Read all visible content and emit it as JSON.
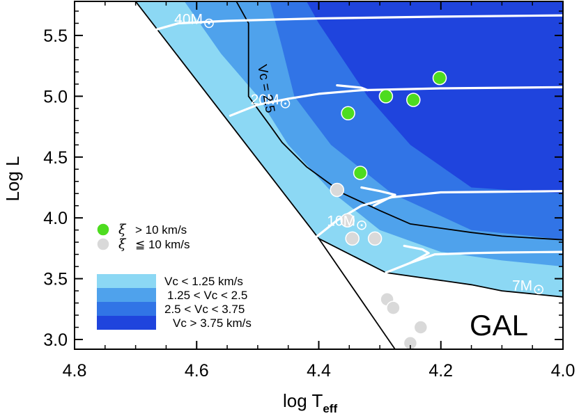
{
  "chart_data": {
    "type": "scatter",
    "xlabel": "log T",
    "xlabel_sub": "eff",
    "ylabel": "Log L",
    "xlim": [
      4.8,
      4.0
    ],
    "ylim": [
      2.92,
      5.78
    ],
    "xticks": [
      4.8,
      4.6,
      4.4,
      4.2,
      4.0
    ],
    "xtick_labels": [
      "4.8",
      "4.6",
      "4.4",
      "4.2",
      "4.0"
    ],
    "yticks": [
      3.0,
      3.5,
      4.0,
      4.5,
      5.0,
      5.5
    ],
    "ytick_labels": [
      "3.0",
      "3.5",
      "4.0",
      "4.5",
      "5.0",
      "5.5"
    ],
    "annotation": "GAL",
    "contour_label": "Vc = 2.5",
    "colors": {
      "level1": "#8cd8f4",
      "level2": "#4fa2ec",
      "level3": "#3174e6",
      "level4": "#1f44dd",
      "green": "#4ddc1f",
      "gray": "#d9d9d9",
      "track": "#ffffff"
    },
    "regions": [
      {
        "name": "Vc < 1.25 km/s",
        "color": "#8cd8f4",
        "x": [
          4.7,
          4.4,
          4.29,
          4.15,
          4.1,
          4.0,
          4.0
        ],
        "y": [
          5.78,
          3.83,
          3.55,
          3.45,
          3.4,
          3.35,
          5.78
        ]
      },
      {
        "name": "1.25 < Vc < 2.5",
        "color": "#4fa2ec",
        "x": [
          4.62,
          4.56,
          4.5,
          4.45,
          4.38,
          4.3,
          4.2,
          4.1,
          4.0,
          4.0
        ],
        "y": [
          5.78,
          5.35,
          5.0,
          4.6,
          4.22,
          3.9,
          3.72,
          3.65,
          3.6,
          5.78
        ]
      },
      {
        "name": "2.5 < Vc < 3.75",
        "color": "#3174e6",
        "x": [
          4.48,
          4.46,
          4.44,
          4.38,
          4.28,
          4.15,
          4.05,
          4.0,
          4.0
        ],
        "y": [
          5.78,
          5.4,
          5.0,
          4.6,
          4.2,
          3.9,
          3.85,
          3.82,
          5.78
        ]
      },
      {
        "name": "Vc > 3.75 km/s",
        "color": "#1f44dd",
        "x": [
          4.42,
          4.4,
          4.32,
          4.25,
          4.15,
          4.0,
          4.0
        ],
        "y": [
          5.78,
          5.6,
          5.0,
          4.6,
          4.25,
          4.2,
          5.78
        ]
      }
    ],
    "boundaries": [
      {
        "name": "Vc = 1.25",
        "x": [
          4.4,
          4.29,
          4.15,
          4.1,
          4.0
        ],
        "y": [
          3.83,
          3.55,
          3.45,
          3.4,
          3.35
        ]
      },
      {
        "name": "Vc = 2.5",
        "x": [
          4.535,
          4.515,
          4.515,
          4.48,
          4.46,
          4.42,
          4.36,
          4.3,
          4.25,
          4.15,
          4.1,
          4.0
        ],
        "y": [
          5.78,
          5.6,
          5.0,
          4.76,
          4.62,
          4.42,
          4.2,
          4.06,
          3.95,
          3.88,
          3.85,
          3.82
        ]
      },
      {
        "name": "ZAMS",
        "x": [
          4.7,
          4.4
        ],
        "y": [
          5.78,
          3.83
        ]
      },
      {
        "name": "edge",
        "x": [
          4.4,
          4.275
        ],
        "y": [
          3.83,
          2.92
        ]
      }
    ],
    "tracks": [
      {
        "name": "40",
        "label": "40M",
        "label_x": 4.59,
        "label_y": 5.64,
        "x": [
          4.665,
          4.63,
          4.55,
          4.4,
          4.2,
          4.0
        ],
        "y": [
          5.55,
          5.6,
          5.62,
          5.64,
          5.655,
          5.665
        ]
      },
      {
        "name": "20",
        "label": "20M",
        "label_x": 4.465,
        "label_y": 4.98,
        "x": [
          4.545,
          4.5,
          4.45,
          4.4,
          4.33,
          4.2,
          4.0
        ],
        "y": [
          4.84,
          4.93,
          4.98,
          5.02,
          5.05,
          5.065,
          5.075
        ],
        "hook_x": [
          4.37,
          4.33,
          4.32
        ],
        "hook_y": [
          5.09,
          5.07,
          5.05
        ]
      },
      {
        "name": "10",
        "label": "10M",
        "label_x": 4.34,
        "label_y": 3.98,
        "x": [
          4.405,
          4.37,
          4.33,
          4.28,
          4.2,
          4.1,
          4.0
        ],
        "y": [
          3.84,
          3.98,
          4.1,
          4.17,
          4.21,
          4.215,
          4.22
        ],
        "hook_x": [
          4.33,
          4.3,
          4.275,
          4.31
        ],
        "hook_y": [
          4.25,
          4.22,
          4.19,
          4.1
        ]
      },
      {
        "name": "7",
        "label": "7M",
        "label_x": 4.05,
        "label_y": 3.45,
        "x": [
          4.29,
          4.25,
          4.21,
          4.15,
          4.1,
          4.0
        ],
        "y": [
          3.55,
          3.63,
          3.7,
          3.71,
          3.715,
          3.72
        ],
        "hook_x": [
          4.26,
          4.23,
          4.22,
          4.25
        ],
        "hook_y": [
          3.77,
          3.74,
          3.71,
          3.63
        ]
      }
    ],
    "series": [
      {
        "name": "xi > 10 km/s",
        "color": "#4ddc1f",
        "points": [
          [
            4.202,
            5.15
          ],
          [
            4.29,
            5.0
          ],
          [
            4.245,
            4.97
          ],
          [
            4.352,
            4.86
          ],
          [
            4.332,
            4.37
          ]
        ]
      },
      {
        "name": "xi <= 10 km/s",
        "color": "#d9d9d9",
        "points": [
          [
            4.37,
            4.23
          ],
          [
            4.353,
            3.98
          ],
          [
            4.345,
            3.83
          ],
          [
            4.308,
            3.83
          ],
          [
            4.288,
            3.33
          ],
          [
            4.278,
            3.26
          ],
          [
            4.233,
            3.1
          ],
          [
            4.25,
            2.97
          ]
        ]
      }
    ],
    "legend_symbols": [
      {
        "name": "green",
        "label": "> 10 km/s",
        "color": "#4ddc1f"
      },
      {
        "name": "gray",
        "label": "≦ 10 km/s",
        "color": "#d9d9d9"
      }
    ],
    "legend_regions": [
      {
        "name": "level1",
        "label": "Vc < 1.25 km/s",
        "color": "#8cd8f4"
      },
      {
        "name": "level2",
        "label": "1.25 < Vc < 2.5",
        "color": "#4fa2ec"
      },
      {
        "name": "level3",
        "label": "2.5 < Vc < 3.75",
        "color": "#3174e6"
      },
      {
        "name": "level4",
        "label": "Vc > 3.75 km/s",
        "color": "#1f44dd"
      }
    ]
  }
}
